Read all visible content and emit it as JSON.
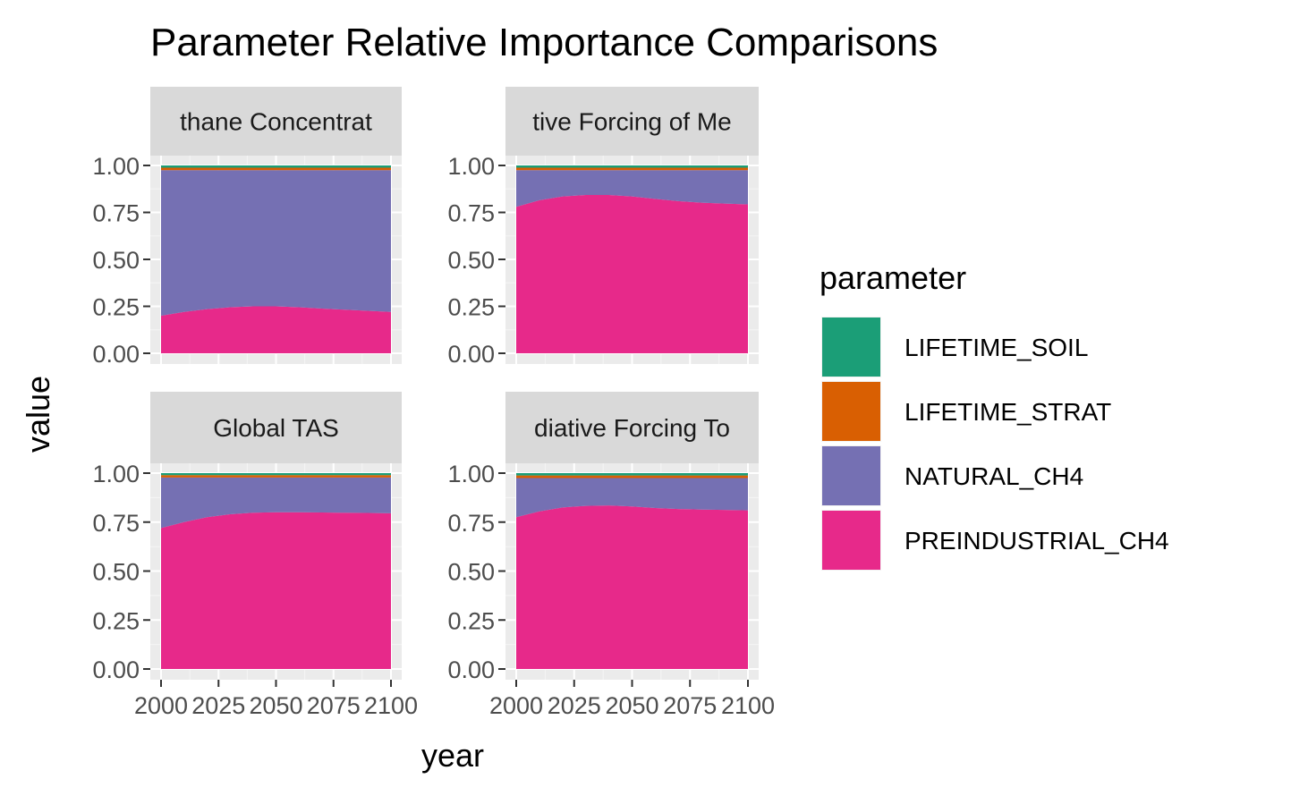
{
  "chart_data": {
    "type": "area",
    "title": "Parameter Relative Importance Comparisons",
    "xlabel": "year",
    "ylabel": "value",
    "x_ticks": [
      "2000",
      "2025",
      "2050",
      "2075",
      "2100"
    ],
    "y_ticks": [
      "0.00",
      "0.25",
      "0.50",
      "0.75",
      "1.00"
    ],
    "xlim": [
      2000,
      2100
    ],
    "ylim": [
      0,
      1
    ],
    "grid": true,
    "stacked": true,
    "legend": {
      "title": "parameter",
      "position": "right",
      "entries": [
        {
          "name": "LIFETIME_SOIL",
          "color": "#1b9e77"
        },
        {
          "name": "LIFETIME_STRAT",
          "color": "#d95f02"
        },
        {
          "name": "NATURAL_CH4",
          "color": "#7570b3"
        },
        {
          "name": "PREINDUSTRIAL_CH4",
          "color": "#e7298a"
        }
      ]
    },
    "years": [
      2000,
      2010,
      2020,
      2030,
      2040,
      2050,
      2060,
      2070,
      2080,
      2090,
      2100
    ],
    "panels": [
      {
        "strip": "thane Concentrat",
        "series": [
          {
            "name": "PREINDUSTRIAL_CH4",
            "values": [
              0.2,
              0.22,
              0.235,
              0.245,
              0.25,
              0.25,
              0.245,
              0.238,
              0.232,
              0.226,
              0.22
            ]
          },
          {
            "name": "NATURAL_CH4",
            "values": [
              0.775,
              0.755,
              0.74,
              0.73,
              0.725,
              0.725,
              0.73,
              0.737,
              0.743,
              0.749,
              0.755
            ]
          },
          {
            "name": "LIFETIME_STRAT",
            "values": [
              0.013,
              0.013,
              0.013,
              0.013,
              0.013,
              0.013,
              0.013,
              0.013,
              0.013,
              0.013,
              0.013
            ]
          },
          {
            "name": "LIFETIME_SOIL",
            "values": [
              0.012,
              0.012,
              0.012,
              0.012,
              0.012,
              0.012,
              0.012,
              0.012,
              0.012,
              0.012,
              0.012
            ]
          }
        ]
      },
      {
        "strip": "tive Forcing of Me",
        "series": [
          {
            "name": "PREINDUSTRIAL_CH4",
            "values": [
              0.78,
              0.815,
              0.835,
              0.843,
              0.843,
              0.835,
              0.822,
              0.81,
              0.802,
              0.797,
              0.793
            ]
          },
          {
            "name": "NATURAL_CH4",
            "values": [
              0.195,
              0.16,
              0.14,
              0.132,
              0.132,
              0.14,
              0.153,
              0.165,
              0.173,
              0.178,
              0.182
            ]
          },
          {
            "name": "LIFETIME_STRAT",
            "values": [
              0.013,
              0.013,
              0.013,
              0.013,
              0.013,
              0.013,
              0.013,
              0.013,
              0.013,
              0.013,
              0.013
            ]
          },
          {
            "name": "LIFETIME_SOIL",
            "values": [
              0.012,
              0.012,
              0.012,
              0.012,
              0.012,
              0.012,
              0.012,
              0.012,
              0.012,
              0.012,
              0.012
            ]
          }
        ]
      },
      {
        "strip": "Global TAS",
        "series": [
          {
            "name": "PREINDUSTRIAL_CH4",
            "values": [
              0.72,
              0.75,
              0.775,
              0.79,
              0.798,
              0.8,
              0.8,
              0.799,
              0.798,
              0.797,
              0.795
            ]
          },
          {
            "name": "NATURAL_CH4",
            "values": [
              0.258,
              0.228,
              0.203,
              0.188,
              0.18,
              0.178,
              0.178,
              0.179,
              0.18,
              0.181,
              0.183
            ]
          },
          {
            "name": "LIFETIME_STRAT",
            "values": [
              0.012,
              0.012,
              0.012,
              0.012,
              0.012,
              0.012,
              0.012,
              0.012,
              0.012,
              0.012,
              0.012
            ]
          },
          {
            "name": "LIFETIME_SOIL",
            "values": [
              0.01,
              0.01,
              0.01,
              0.01,
              0.01,
              0.01,
              0.01,
              0.01,
              0.01,
              0.01,
              0.01
            ]
          }
        ]
      },
      {
        "strip": "diative Forcing To",
        "series": [
          {
            "name": "PREINDUSTRIAL_CH4",
            "values": [
              0.775,
              0.805,
              0.825,
              0.833,
              0.835,
              0.83,
              0.822,
              0.817,
              0.814,
              0.812,
              0.81
            ]
          },
          {
            "name": "NATURAL_CH4",
            "values": [
              0.2,
              0.17,
              0.15,
              0.142,
              0.14,
              0.145,
              0.153,
              0.158,
              0.161,
              0.163,
              0.165
            ]
          },
          {
            "name": "LIFETIME_STRAT",
            "values": [
              0.013,
              0.013,
              0.013,
              0.013,
              0.013,
              0.013,
              0.013,
              0.013,
              0.013,
              0.013,
              0.013
            ]
          },
          {
            "name": "LIFETIME_SOIL",
            "values": [
              0.012,
              0.012,
              0.012,
              0.012,
              0.012,
              0.012,
              0.012,
              0.012,
              0.012,
              0.012,
              0.012
            ]
          }
        ]
      }
    ]
  }
}
